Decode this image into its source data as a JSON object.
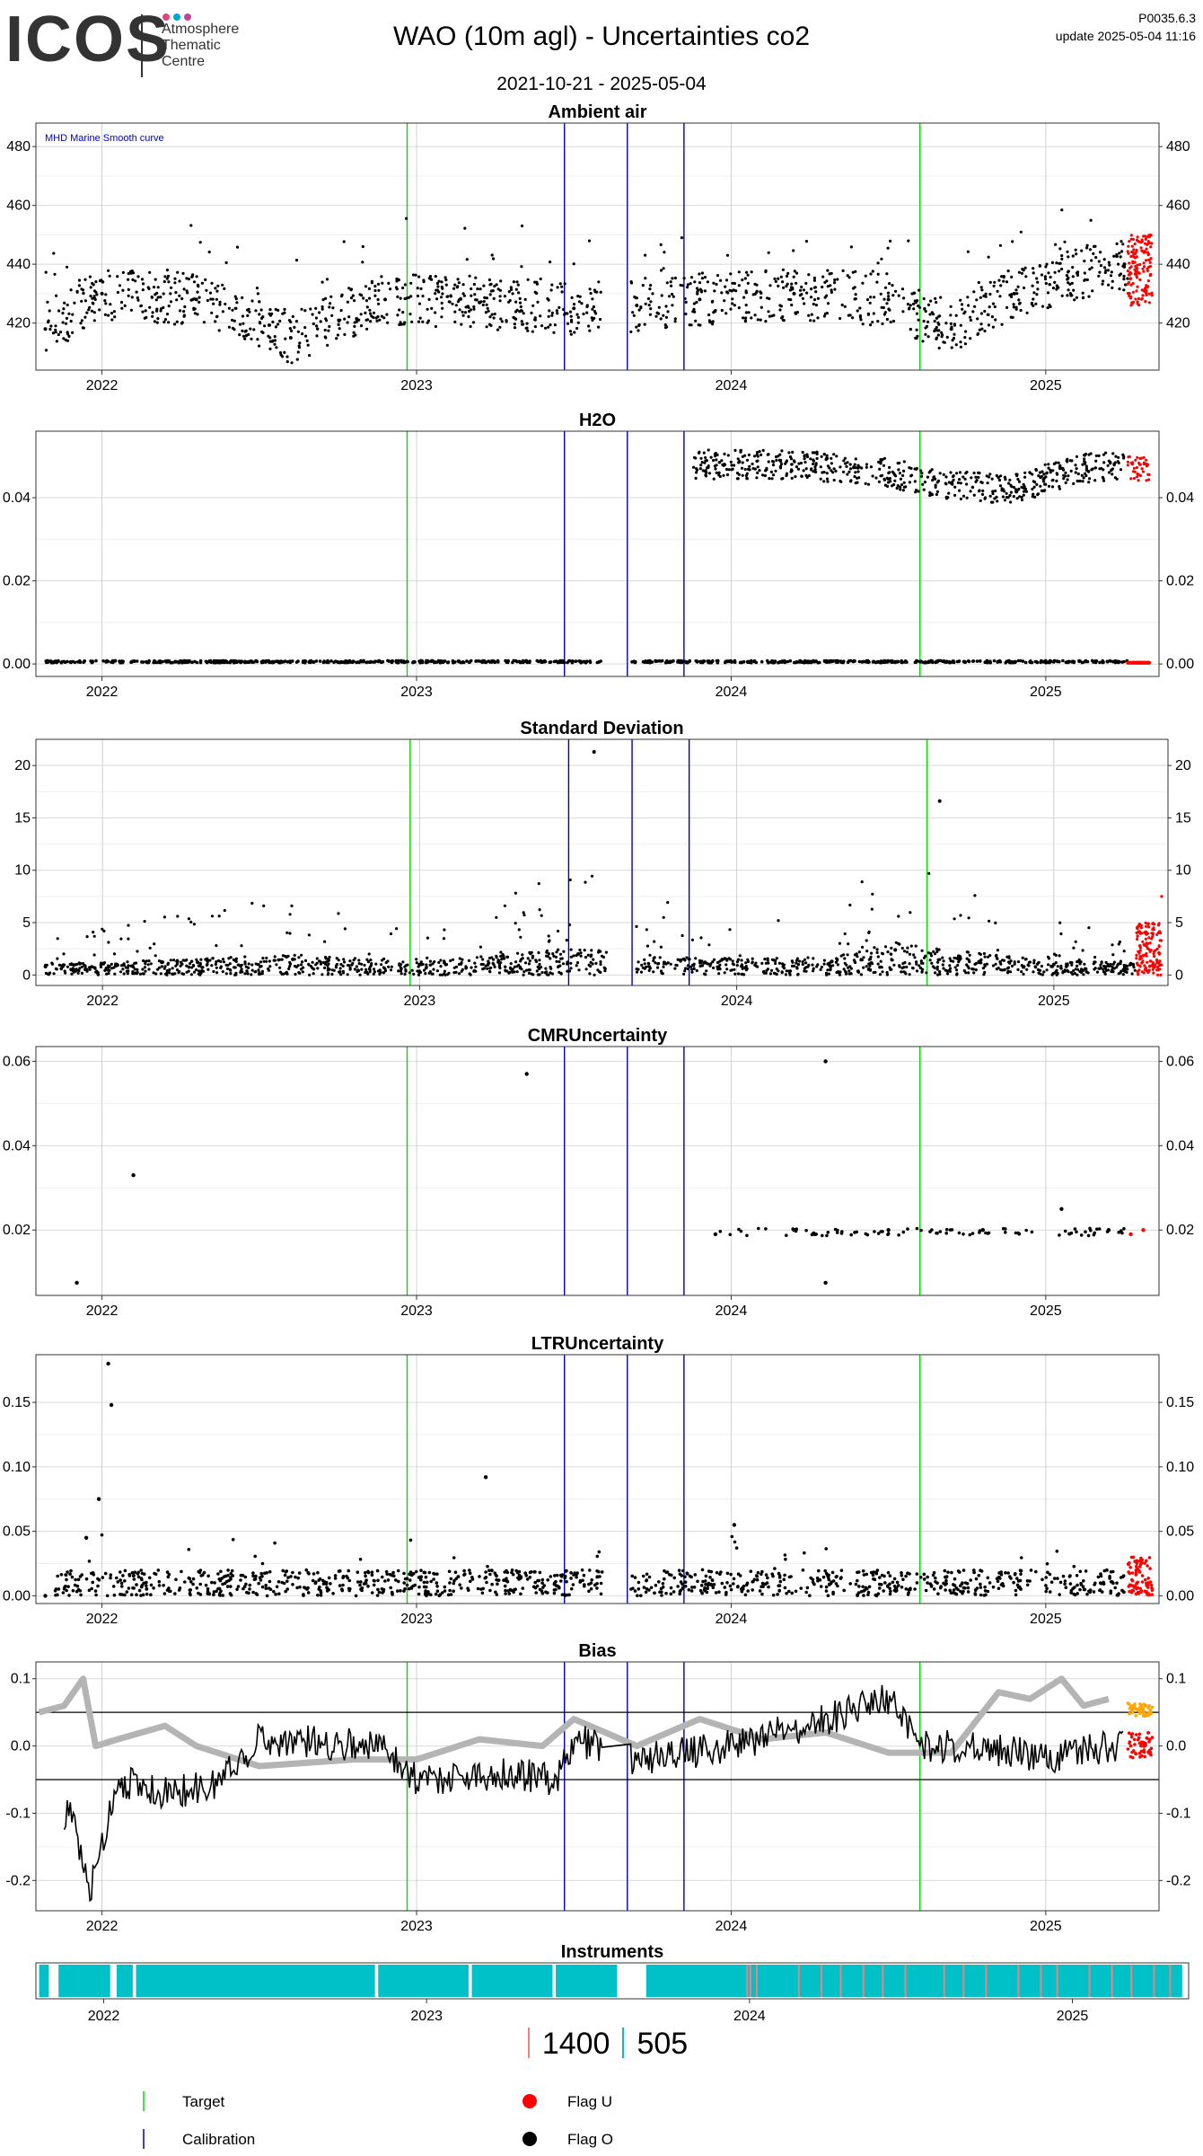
{
  "header": {
    "logo": "ICOS",
    "logo_sub": [
      "Atmosphere",
      "Thematic",
      "Centre"
    ],
    "title": "WAO  (10m agl) - Uncertainties co2",
    "date_range": "2021-10-21 - 2025-05-04",
    "version": "P0035.6.3",
    "update": "update  2025-05-04 11:16"
  },
  "colors": {
    "target": "#00dd00",
    "calibration": "#0000bb",
    "flag_u": "#ff0000",
    "flag_o": "#000000",
    "instrument_505": "#00c0c8",
    "instrument_1400": "#f08080",
    "grey_curve": "#b4b4b4",
    "orange": "#ffa500",
    "marine_note": "#0000cc"
  },
  "chart_data": [
    {
      "type": "scatter",
      "title": "Ambient air",
      "x_ticks": [
        "2022",
        "2023",
        "2024",
        "2025"
      ],
      "y_ticks": [
        420,
        440,
        460,
        480
      ],
      "ylim": [
        404,
        488
      ],
      "annotation": "MHD Marine Smooth curve",
      "series": [
        {
          "values": [
            [
              2021.82,
              418
            ],
            [
              2022.0,
              430
            ],
            [
              2022.3,
              428
            ],
            [
              2022.6,
              415
            ],
            [
              2022.9,
              428
            ],
            [
              2023.2,
              427
            ],
            [
              2023.5,
              425
            ],
            [
              2023.7,
              426
            ],
            [
              2023.9,
              428
            ],
            [
              2024.2,
              430
            ],
            [
              2024.5,
              428
            ],
            [
              2024.7,
              418
            ],
            [
              2024.9,
              430
            ],
            [
              2025.1,
              437
            ],
            [
              2025.25,
              440
            ]
          ]
        },
        {
          "values": [
            [
              2025.26,
              438
            ],
            [
              2025.34,
              436
            ]
          ]
        }
      ],
      "vlines": {
        "target": [
          2022.97,
          2024.6
        ],
        "calibration": [
          2023.47,
          2023.67,
          2023.85
        ]
      }
    },
    {
      "type": "scatter",
      "title": "H2O",
      "x_ticks": [
        "2022",
        "2023",
        "2024",
        "2025"
      ],
      "y_ticks": [
        "0.00",
        "0.02",
        "0.04"
      ],
      "ylim": [
        -0.003,
        0.056
      ],
      "series": [
        {
          "values": [
            [
              2021.82,
              0.0005
            ],
            [
              2022.5,
              0.0004
            ],
            [
              2023.0,
              0.0002
            ],
            [
              2023.5,
              0.0003
            ],
            [
              2024.0,
              0.0003
            ],
            [
              2024.5,
              0.0003
            ],
            [
              2025.0,
              0.0003
            ],
            [
              2025.26,
              0.0003
            ],
            [
              2023.9,
              0.048
            ],
            [
              2024.2,
              0.048
            ],
            [
              2024.5,
              0.046
            ],
            [
              2024.7,
              0.043
            ],
            [
              2024.9,
              0.042
            ],
            [
              2025.1,
              0.047
            ],
            [
              2025.25,
              0.048
            ]
          ]
        },
        {
          "values": [
            [
              2025.3,
              0.0003
            ],
            [
              2025.3,
              0.047
            ]
          ]
        }
      ],
      "vlines": {
        "target": [
          2022.97,
          2024.6
        ],
        "calibration": [
          2023.47,
          2023.67,
          2023.85
        ]
      }
    },
    {
      "type": "scatter",
      "title": "Standard Deviation",
      "x_ticks": [
        "2022",
        "2023",
        "2024",
        "2025"
      ],
      "y_ticks": [
        0,
        5,
        10,
        15,
        20
      ],
      "ylim": [
        -1,
        22.5
      ],
      "series": [
        {
          "values": [
            [
              2021.82,
              0.8
            ],
            [
              2022.3,
              1.2
            ],
            [
              2022.6,
              1.5
            ],
            [
              2023.0,
              1.0
            ],
            [
              2023.5,
              2.0
            ],
            [
              2023.9,
              1.2
            ],
            [
              2024.3,
              1.3
            ],
            [
              2024.5,
              2.4
            ],
            [
              2024.7,
              1.8
            ],
            [
              2025.0,
              1.0
            ],
            [
              2025.25,
              1.0
            ],
            [
              2023.55,
              21.3
            ],
            [
              2024.64,
              16.6
            ]
          ]
        },
        {
          "values": [
            [
              2025.3,
              2.2
            ],
            [
              2025.34,
              7.5
            ]
          ]
        }
      ],
      "vlines": {
        "target": [
          2022.97,
          2024.6
        ],
        "calibration": [
          2023.47,
          2023.67,
          2023.85
        ]
      }
    },
    {
      "type": "scatter",
      "title": "CMRUncertainty",
      "x_ticks": [
        "2022",
        "2023",
        "2024",
        "2025"
      ],
      "y_ticks": [
        "0.02",
        "0.04",
        "0.06"
      ],
      "ylim": [
        0.0045,
        0.0635
      ],
      "series": [
        {
          "values": [
            [
              2021.92,
              0.0075
            ],
            [
              2022.1,
              0.033
            ],
            [
              2023.35,
              0.057
            ],
            [
              2024.3,
              0.06
            ],
            [
              2024.3,
              0.0075
            ],
            [
              2023.95,
              0.019
            ],
            [
              2024.2,
              0.02
            ],
            [
              2024.5,
              0.02
            ],
            [
              2024.8,
              0.02
            ],
            [
              2025.05,
              0.025
            ],
            [
              2025.2,
              0.02
            ]
          ]
        },
        {
          "values": [
            [
              2025.27,
              0.019
            ],
            [
              2025.31,
              0.02
            ]
          ]
        }
      ],
      "vlines": {
        "target": [
          2022.97,
          2024.6
        ],
        "calibration": [
          2023.47,
          2023.67,
          2023.85
        ]
      }
    },
    {
      "type": "scatter",
      "title": "LTRUncertainty",
      "x_ticks": [
        "2022",
        "2023",
        "2024",
        "2025"
      ],
      "y_ticks": [
        "0.00",
        "0.05",
        "0.10",
        "0.15"
      ],
      "ylim": [
        -0.006,
        0.187
      ],
      "series": [
        {
          "values": [
            [
              2021.82,
              0.0
            ],
            [
              2021.95,
              0.045
            ],
            [
              2022.02,
              0.18
            ],
            [
              2022.03,
              0.148
            ],
            [
              2021.99,
              0.075
            ],
            [
              2023.22,
              0.092
            ],
            [
              2024.01,
              0.055
            ],
            [
              2022.5,
              0.01
            ],
            [
              2023.0,
              0.012
            ],
            [
              2023.5,
              0.01
            ],
            [
              2024.2,
              0.012
            ],
            [
              2024.6,
              0.012
            ],
            [
              2025.0,
              0.012
            ],
            [
              2025.25,
              0.012
            ]
          ]
        },
        {
          "values": [
            [
              2025.28,
              0.012
            ],
            [
              2025.33,
              0.02
            ]
          ]
        }
      ],
      "vlines": {
        "target": [
          2022.97,
          2024.6
        ],
        "calibration": [
          2023.47,
          2023.67,
          2023.85
        ]
      }
    },
    {
      "type": "line",
      "title": "Bias",
      "x_ticks": [
        "2022",
        "2023",
        "2024",
        "2025"
      ],
      "y_ticks": [
        "-0.2",
        "-0.1",
        "0.0",
        "0.1"
      ],
      "ylim": [
        -0.245,
        0.125
      ],
      "hlines": [
        0.05,
        -0.05
      ],
      "series": [
        {
          "values": [
            [
              2021.8,
              0.05
            ],
            [
              2021.88,
              0.06
            ],
            [
              2021.94,
              0.1
            ],
            [
              2021.98,
              0.0
            ],
            [
              2022.05,
              0.01
            ],
            [
              2022.2,
              0.03
            ],
            [
              2022.3,
              0.0
            ],
            [
              2022.5,
              -0.03
            ],
            [
              2022.8,
              -0.02
            ],
            [
              2023.0,
              -0.02
            ],
            [
              2023.2,
              0.01
            ],
            [
              2023.4,
              0.0
            ],
            [
              2023.5,
              0.04
            ],
            [
              2023.7,
              0.0
            ],
            [
              2023.9,
              0.04
            ],
            [
              2024.1,
              0.01
            ],
            [
              2024.3,
              0.02
            ],
            [
              2024.5,
              -0.01
            ],
            [
              2024.7,
              -0.01
            ],
            [
              2024.85,
              0.08
            ],
            [
              2024.95,
              0.07
            ],
            [
              2025.05,
              0.1
            ],
            [
              2025.12,
              0.06
            ],
            [
              2025.2,
              0.07
            ]
          ]
        },
        {
          "values": [
            [
              2021.9,
              -0.1
            ],
            [
              2021.96,
              -0.22
            ],
            [
              2022.05,
              -0.05
            ],
            [
              2022.2,
              -0.07
            ],
            [
              2022.35,
              -0.06
            ],
            [
              2022.5,
              0.01
            ],
            [
              2022.9,
              0.0
            ],
            [
              2023.0,
              -0.05
            ],
            [
              2023.3,
              -0.04
            ],
            [
              2023.45,
              -0.05
            ],
            [
              2023.5,
              0.01
            ],
            [
              2023.7,
              -0.02
            ],
            [
              2024.0,
              0.0
            ],
            [
              2024.3,
              0.04
            ],
            [
              2024.5,
              0.07
            ],
            [
              2024.6,
              0.0
            ],
            [
              2024.8,
              0.0
            ],
            [
              2025.0,
              -0.02
            ],
            [
              2025.2,
              0.0
            ]
          ]
        },
        {
          "values": [
            [
              2025.26,
              -0.01
            ],
            [
              2025.34,
              -0.02
            ]
          ]
        },
        {
          "values": [
            [
              2025.26,
              0.05
            ],
            [
              2025.34,
              0.06
            ]
          ]
        }
      ],
      "vlines": {
        "target": [
          2022.97,
          2024.6
        ],
        "calibration": [
          2023.47,
          2023.67,
          2023.85
        ]
      }
    },
    {
      "type": "bar",
      "title": "Instruments",
      "x_ticks": [
        "2022",
        "2023",
        "2024",
        "2025"
      ],
      "segments_505": [
        [
          2021.8,
          2021.83
        ],
        [
          2021.86,
          2022.02
        ],
        [
          2022.04,
          2022.09
        ],
        [
          2022.1,
          2022.84
        ],
        [
          2022.85,
          2023.13
        ],
        [
          2023.14,
          2023.39
        ],
        [
          2023.4,
          2023.59
        ],
        [
          2023.68,
          2025.34
        ]
      ],
      "marks_1400": [
        2023.99,
        2024.0,
        2024.02,
        2024.15,
        2024.22,
        2024.28,
        2024.35,
        2024.41,
        2024.48,
        2024.6,
        2024.66,
        2024.73,
        2024.83,
        2024.9,
        2024.95,
        2025.05,
        2025.12,
        2025.18,
        2025.25,
        2025.3
      ]
    }
  ],
  "instrument_legend": {
    "a": "1400",
    "b": "505"
  },
  "legend": {
    "target": "Target",
    "calibration": "Calibration",
    "flag_u": "Flag U",
    "flag_o": "Flag O"
  }
}
